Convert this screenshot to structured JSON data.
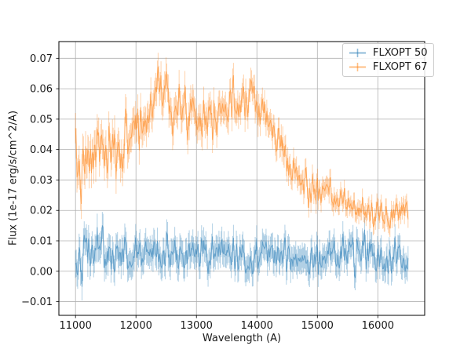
{
  "figure": {
    "background": "#ffffff"
  },
  "chart_data": {
    "type": "line",
    "title": "",
    "xlabel": "Wavelength (A)",
    "ylabel": "Flux (1e-17 erg/s/cm^2/A)",
    "xlim": [
      10725,
      16775
    ],
    "ylim": [
      -0.0145,
      0.0755
    ],
    "xticks": [
      11000,
      12000,
      13000,
      14000,
      15000,
      16000
    ],
    "yticks": [
      -0.01,
      0.0,
      0.01,
      0.02,
      0.03,
      0.04,
      0.05,
      0.06,
      0.07
    ],
    "grid": true,
    "grid_color": "#b0b0b0",
    "axis_color": "#000000",
    "tick_label_color": "#1a1a1a",
    "legend_position": "upper right",
    "series": [
      {
        "name": "FLXOPT 50",
        "color": "#1f77b4",
        "alpha": 0.55,
        "errorbar_alpha": 0.35,
        "marker": "errorbar",
        "x_range": [
          11000,
          16500
        ],
        "n_points": 460,
        "seed": 42,
        "trend": [
          [
            11000,
            0.005
          ],
          [
            11200,
            0.006
          ],
          [
            11400,
            0.008
          ],
          [
            11600,
            0.006
          ],
          [
            11800,
            0.004
          ],
          [
            12000,
            0.006
          ],
          [
            12300,
            0.006
          ],
          [
            12600,
            0.005
          ],
          [
            13000,
            0.005
          ],
          [
            13400,
            0.006
          ],
          [
            13800,
            0.005
          ],
          [
            14200,
            0.006
          ],
          [
            14600,
            0.005
          ],
          [
            15000,
            0.005
          ],
          [
            15400,
            0.006
          ],
          [
            15800,
            0.005
          ],
          [
            16200,
            0.004
          ],
          [
            16500,
            0.004
          ]
        ],
        "noise_std": [
          [
            11000,
            0.0035
          ],
          [
            11500,
            0.004
          ],
          [
            12000,
            0.003
          ],
          [
            16500,
            0.003
          ]
        ],
        "error_bar": [
          [
            11000,
            0.0045
          ],
          [
            16500,
            0.004
          ]
        ]
      },
      {
        "name": "FLXOPT 67",
        "color": "#ff7f0e",
        "alpha": 0.55,
        "errorbar_alpha": 0.35,
        "marker": "errorbar",
        "x_range": [
          11000,
          16500
        ],
        "n_points": 460,
        "seed": 7,
        "trend": [
          [
            11000,
            0.036
          ],
          [
            11100,
            0.031
          ],
          [
            11250,
            0.036
          ],
          [
            11400,
            0.042
          ],
          [
            11550,
            0.036
          ],
          [
            11700,
            0.039
          ],
          [
            11850,
            0.043
          ],
          [
            11950,
            0.049
          ],
          [
            12050,
            0.047
          ],
          [
            12200,
            0.05
          ],
          [
            12250,
            0.052
          ],
          [
            12330,
            0.063
          ],
          [
            12370,
            0.065
          ],
          [
            12450,
            0.057
          ],
          [
            12530,
            0.061
          ],
          [
            12600,
            0.055
          ],
          [
            12750,
            0.051
          ],
          [
            12950,
            0.055
          ],
          [
            13100,
            0.05
          ],
          [
            13250,
            0.053
          ],
          [
            13400,
            0.055
          ],
          [
            13550,
            0.052
          ],
          [
            13700,
            0.057
          ],
          [
            13850,
            0.059
          ],
          [
            13950,
            0.06
          ],
          [
            14050,
            0.055
          ],
          [
            14200,
            0.048
          ],
          [
            14350,
            0.043
          ],
          [
            14500,
            0.037
          ],
          [
            14650,
            0.031
          ],
          [
            14800,
            0.028
          ],
          [
            15000,
            0.026
          ],
          [
            15250,
            0.024
          ],
          [
            15500,
            0.022
          ],
          [
            15750,
            0.02
          ],
          [
            16000,
            0.018
          ],
          [
            16200,
            0.018
          ],
          [
            16350,
            0.02
          ],
          [
            16500,
            0.022
          ]
        ],
        "noise_std": [
          [
            11000,
            0.005
          ],
          [
            12500,
            0.0042
          ],
          [
            14000,
            0.004
          ],
          [
            14800,
            0.003
          ],
          [
            15500,
            0.0022
          ],
          [
            16500,
            0.0025
          ]
        ],
        "error_bar": [
          [
            11000,
            0.005
          ],
          [
            13000,
            0.0045
          ],
          [
            14500,
            0.0035
          ],
          [
            15500,
            0.0027
          ],
          [
            16500,
            0.0028
          ]
        ]
      }
    ]
  }
}
